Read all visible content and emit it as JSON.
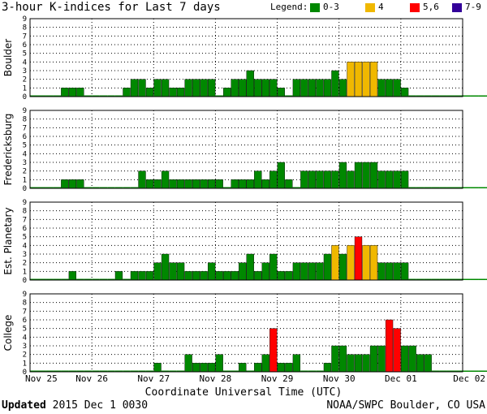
{
  "title": "3-hour K-indices for Last 7 days",
  "legend": {
    "label": "Legend:",
    "items": [
      {
        "label": "0-3",
        "color": "#008800"
      },
      {
        "label": "4",
        "color": "#f0b800"
      },
      {
        "label": "5,6",
        "color": "#ff0000"
      },
      {
        "label": "7-9",
        "color": "#330099"
      }
    ]
  },
  "footer": {
    "updated_label": "Updated",
    "updated_value": "2015 Dec  1 0030",
    "source": "NOAA/SWPC Boulder, CO USA"
  },
  "chart_data": {
    "type": "bar",
    "xlabel": "Coordinate Universal Time (UTC)",
    "x_tick_labels": [
      "Nov 25",
      "Nov 26",
      "Nov 27",
      "Nov 28",
      "Nov 29",
      "Nov 30",
      "Dec 01",
      "Dec 02"
    ],
    "y_ticks": [
      "0",
      "1",
      "2",
      "3",
      "4",
      "5",
      "6",
      "7",
      "8",
      "9"
    ],
    "ylim": [
      0,
      9
    ],
    "bins_per_day": 8,
    "grid": true,
    "panels": [
      {
        "name": "Boulder",
        "values": [
          0,
          0,
          0,
          0,
          1,
          1,
          1,
          0,
          0,
          0,
          0,
          0,
          1,
          2,
          2,
          1,
          2,
          2,
          1,
          1,
          2,
          2,
          2,
          2,
          0,
          1,
          2,
          2,
          3,
          2,
          2,
          2,
          1,
          0,
          2,
          2,
          2,
          2,
          2,
          3,
          2,
          4,
          4,
          4,
          4,
          2,
          2,
          2,
          1,
          0,
          0,
          0,
          0,
          0,
          0,
          0,
          0,
          0,
          0,
          0,
          0,
          0,
          0,
          0
        ]
      },
      {
        "name": "Fredericksburg",
        "values": [
          0,
          0,
          0,
          0,
          1,
          1,
          1,
          0,
          0,
          0,
          0,
          0,
          0,
          0,
          2,
          1,
          1,
          2,
          1,
          1,
          1,
          1,
          1,
          1,
          1,
          0,
          1,
          1,
          1,
          2,
          1,
          2,
          3,
          1,
          0,
          2,
          2,
          2,
          2,
          2,
          3,
          2,
          3,
          3,
          3,
          2,
          2,
          2,
          2,
          0,
          0,
          0,
          0,
          0,
          0,
          0,
          0,
          0,
          0,
          0,
          0,
          0,
          0,
          0
        ]
      },
      {
        "name": "Est. Planetary",
        "values": [
          0,
          0,
          0,
          0,
          0,
          1,
          0,
          0,
          0,
          0,
          0,
          1,
          0,
          1,
          1,
          1,
          2,
          3,
          2,
          2,
          1,
          1,
          1,
          2,
          1,
          1,
          1,
          2,
          3,
          1,
          2,
          3,
          1,
          1,
          2,
          2,
          2,
          2,
          3,
          4,
          3,
          4,
          5,
          4,
          4,
          2,
          2,
          2,
          2,
          0,
          0,
          0,
          0,
          0,
          0,
          0,
          0,
          0,
          0,
          0,
          0,
          0,
          0,
          0
        ]
      },
      {
        "name": "College",
        "values": [
          0,
          0,
          0,
          0,
          0,
          0,
          0,
          0,
          0,
          0,
          0,
          0,
          0,
          0,
          0,
          0,
          1,
          0,
          0,
          0,
          2,
          1,
          1,
          1,
          2,
          0,
          0,
          1,
          0,
          1,
          2,
          5,
          1,
          1,
          2,
          0,
          0,
          0,
          1,
          3,
          3,
          2,
          2,
          2,
          3,
          3,
          6,
          5,
          3,
          3,
          2,
          2,
          0,
          0,
          0,
          0,
          0,
          0,
          0,
          0,
          0,
          0,
          0,
          0
        ]
      }
    ]
  }
}
